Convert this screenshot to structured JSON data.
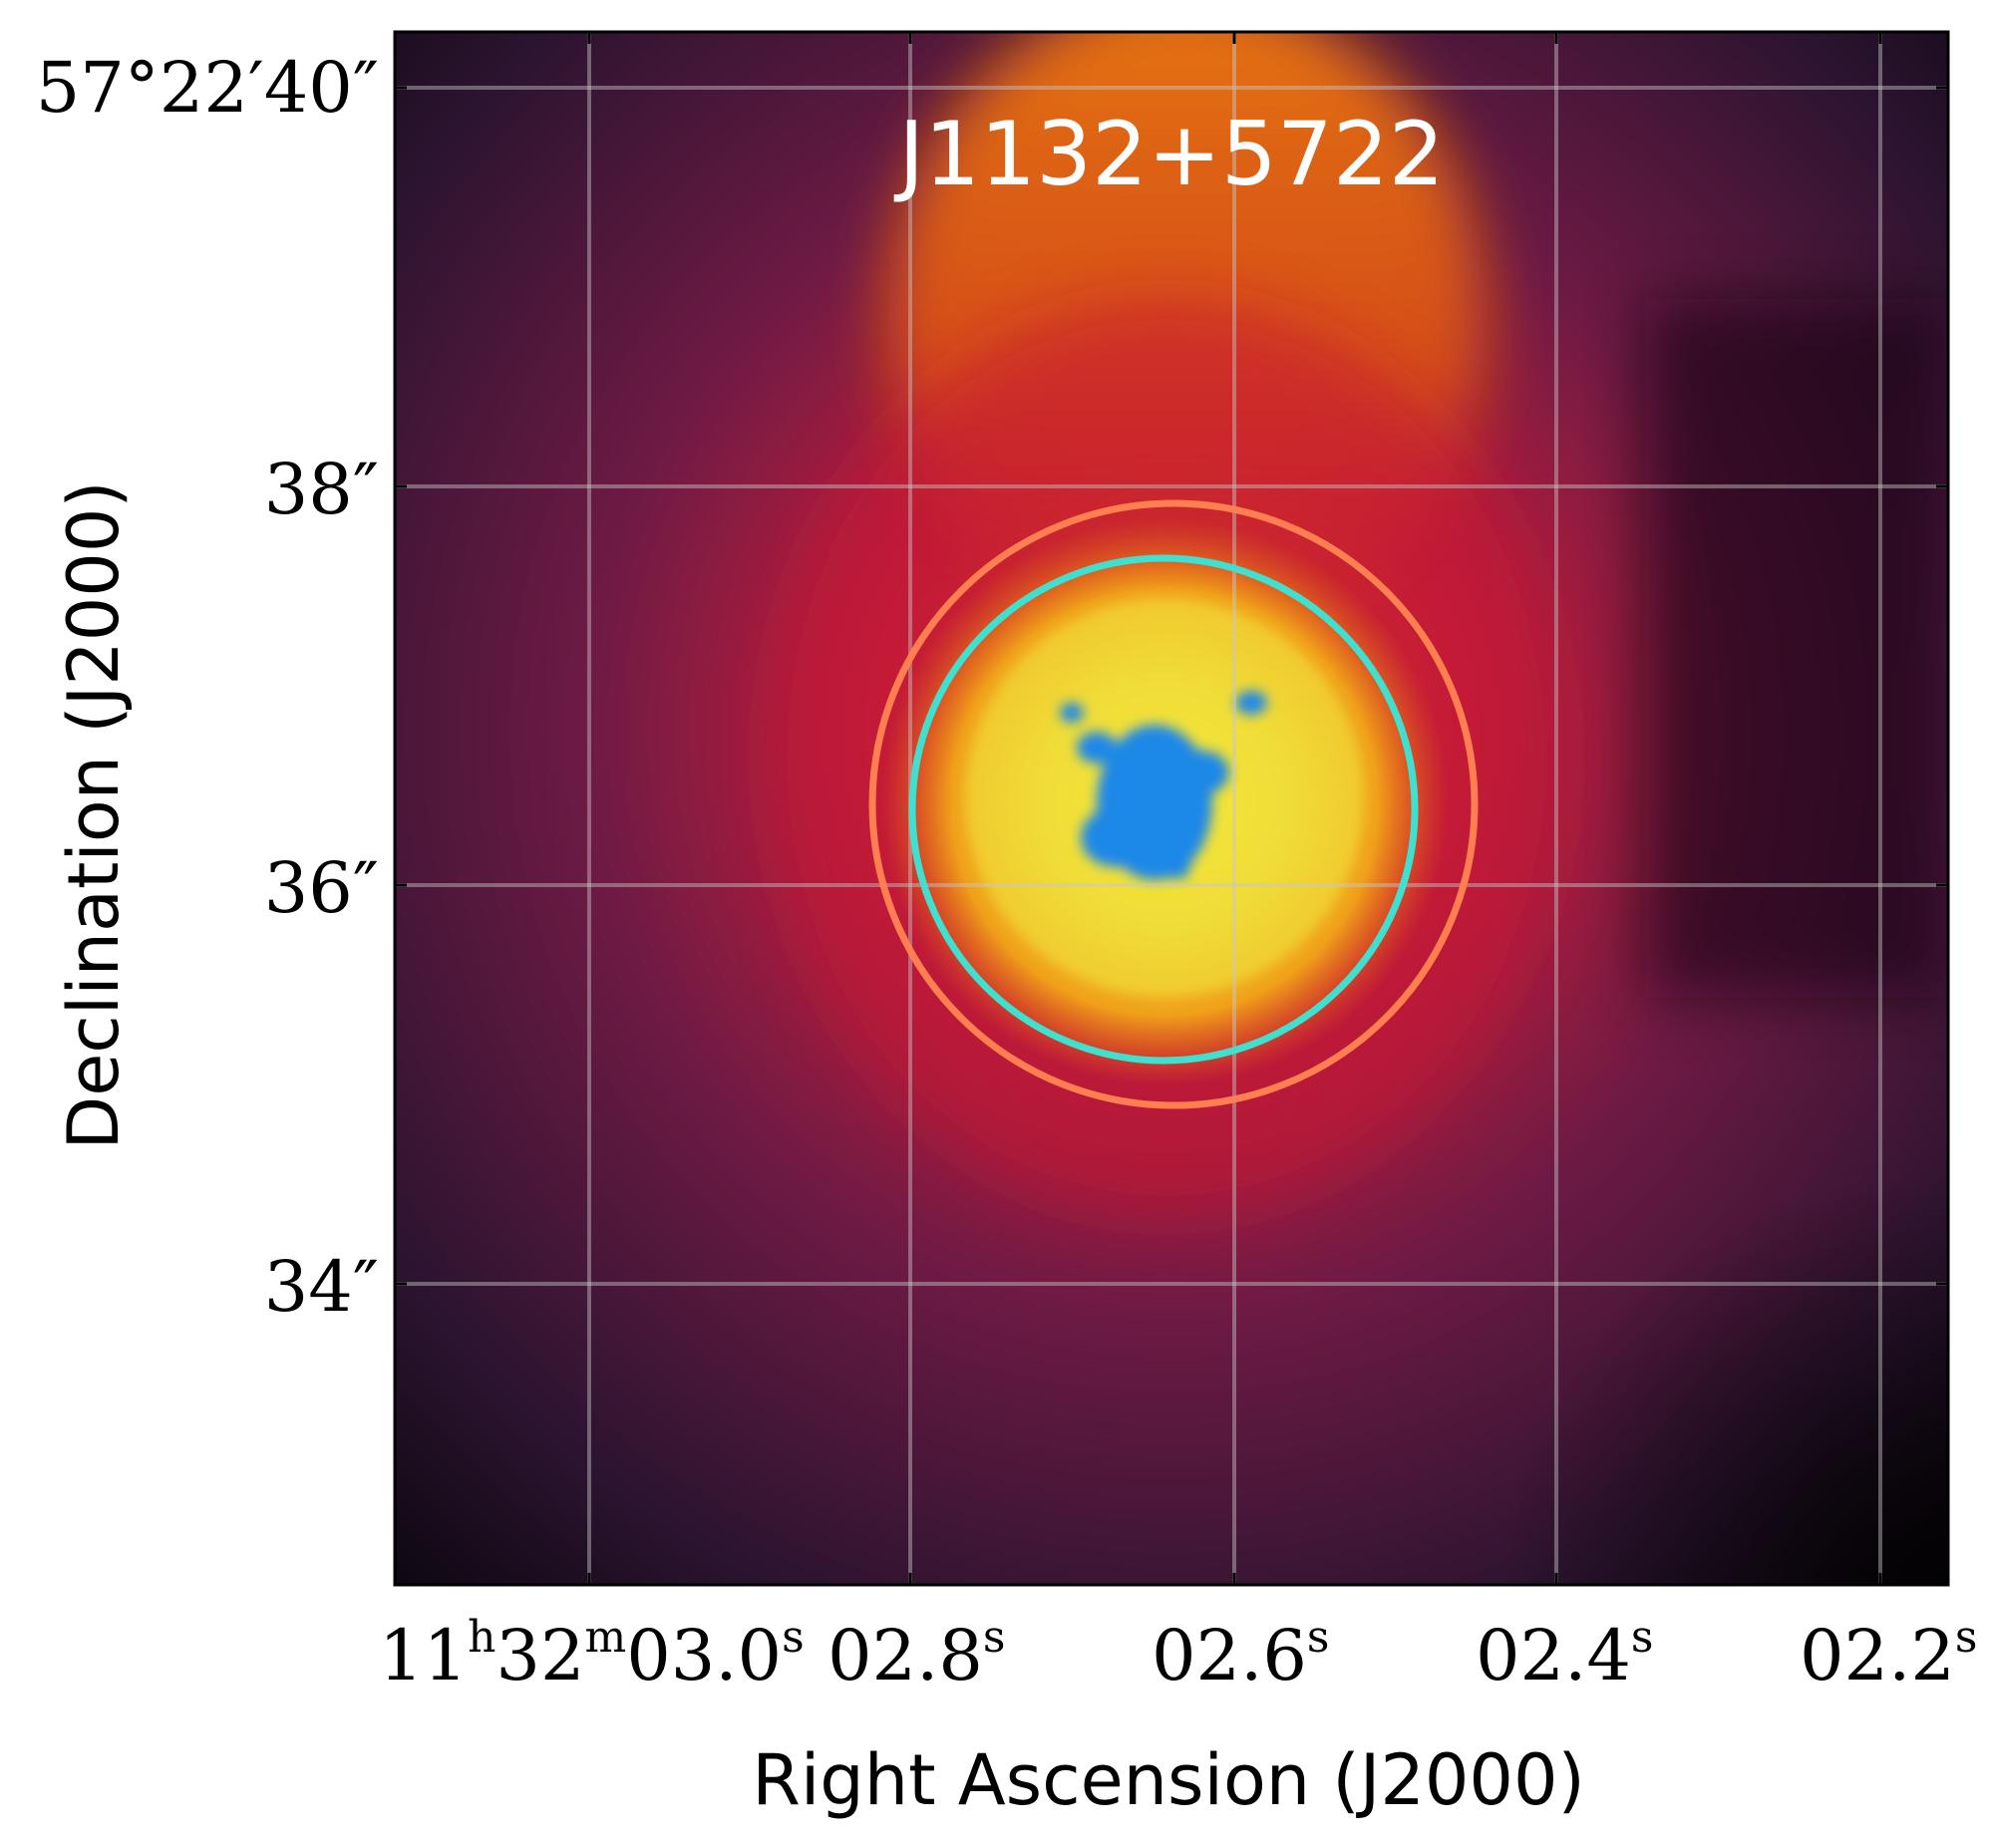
{
  "figure": {
    "title": "J1132+5722",
    "xlabel": "Right Ascension (J2000)",
    "ylabel": "Declination (J2000)",
    "x_ticks": [
      {
        "main": "11",
        "u1": "h",
        "v2": "32",
        "u2": "m",
        "v3": "03.0",
        "u3": "s"
      },
      {
        "main": "02.8",
        "u1": "s"
      },
      {
        "main": "02.6",
        "u1": "s"
      },
      {
        "main": "02.4",
        "u1": "s"
      },
      {
        "main": "02.2",
        "u1": "s"
      }
    ],
    "y_ticks": [
      "57°22′40″",
      "38″",
      "36″",
      "34″"
    ],
    "grid": true,
    "colormap": "inferno-like (dark purple → red → orange → yellow)",
    "overlay": "compact blue emission at center",
    "apertures": [
      {
        "name": "outer-aperture",
        "color": "#ff7f50"
      },
      {
        "name": "inner-aperture",
        "color": "#40e0d0"
      }
    ]
  }
}
